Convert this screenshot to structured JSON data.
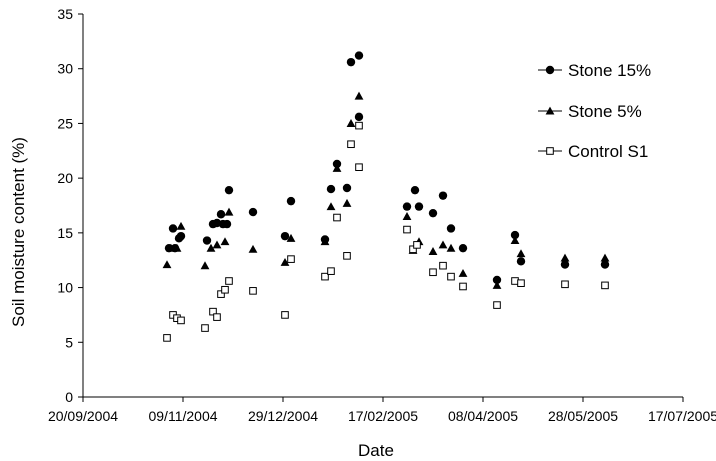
{
  "chart_data": {
    "type": "scatter",
    "title": "",
    "xlabel": "Date",
    "ylabel": "Soil moisture content (%)",
    "xlim": [
      "2004-09-20",
      "2005-07-17"
    ],
    "ylim": [
      0,
      35
    ],
    "y_ticks": [
      0,
      5,
      10,
      15,
      20,
      25,
      30,
      35
    ],
    "x_ticks": [
      "2004-09-20",
      "2004-11-09",
      "2004-12-29",
      "2005-02-17",
      "2005-04-08",
      "2005-05-28",
      "2005-07-17"
    ],
    "x_tick_labels": [
      "20/09/2004",
      "09/11/2004",
      "29/12/2004",
      "17/02/2005",
      "08/04/2005",
      "28/05/2005",
      "17/07/2005"
    ],
    "grid": false,
    "legend_position": "right",
    "series": [
      {
        "name": "Stone 15%",
        "marker": "filled-circle",
        "points": [
          [
            "2004-11-02",
            13.6
          ],
          [
            "2004-11-04",
            15.4
          ],
          [
            "2004-11-05",
            13.6
          ],
          [
            "2004-11-07",
            14.5
          ],
          [
            "2004-11-08",
            14.7
          ],
          [
            "2004-11-21",
            14.3
          ],
          [
            "2004-11-24",
            15.8
          ],
          [
            "2004-11-26",
            15.9
          ],
          [
            "2004-11-28",
            16.7
          ],
          [
            "2004-11-29",
            15.8
          ],
          [
            "2004-12-01",
            15.8
          ],
          [
            "2004-12-02",
            18.9
          ],
          [
            "2004-12-14",
            16.9
          ],
          [
            "2004-12-30",
            14.7
          ],
          [
            "2005-01-02",
            17.9
          ],
          [
            "2005-01-19",
            14.4
          ],
          [
            "2005-01-22",
            19.0
          ],
          [
            "2005-01-25",
            21.3
          ],
          [
            "2005-01-30",
            19.1
          ],
          [
            "2005-02-01",
            30.6
          ],
          [
            "2005-02-05",
            25.6
          ],
          [
            "2005-02-05",
            31.2
          ],
          [
            "2005-03-01",
            17.4
          ],
          [
            "2005-03-05",
            18.9
          ],
          [
            "2005-03-07",
            17.4
          ],
          [
            "2005-03-14",
            16.8
          ],
          [
            "2005-03-19",
            18.4
          ],
          [
            "2005-03-23",
            15.4
          ],
          [
            "2005-03-29",
            13.6
          ],
          [
            "2005-04-15",
            10.7
          ],
          [
            "2005-04-24",
            14.8
          ],
          [
            "2005-04-27",
            12.4
          ],
          [
            "2005-05-19",
            12.1
          ],
          [
            "2005-06-08",
            12.1
          ]
        ]
      },
      {
        "name": "Stone 5%",
        "marker": "filled-triangle",
        "points": [
          [
            "2004-11-01",
            12.1
          ],
          [
            "2004-11-03",
            13.6
          ],
          [
            "2004-11-06",
            13.6
          ],
          [
            "2004-11-08",
            15.6
          ],
          [
            "2004-11-20",
            12.0
          ],
          [
            "2004-11-23",
            13.6
          ],
          [
            "2004-11-26",
            13.9
          ],
          [
            "2004-11-30",
            14.2
          ],
          [
            "2004-12-02",
            16.9
          ],
          [
            "2004-12-14",
            13.5
          ],
          [
            "2004-12-30",
            12.3
          ],
          [
            "2005-01-02",
            14.5
          ],
          [
            "2005-01-19",
            14.2
          ],
          [
            "2005-01-22",
            17.4
          ],
          [
            "2005-01-25",
            20.9
          ],
          [
            "2005-01-30",
            17.7
          ],
          [
            "2005-02-01",
            25.0
          ],
          [
            "2005-02-05",
            27.5
          ],
          [
            "2005-03-01",
            16.5
          ],
          [
            "2005-03-04",
            13.4
          ],
          [
            "2005-03-07",
            14.2
          ],
          [
            "2005-03-14",
            13.3
          ],
          [
            "2005-03-19",
            13.9
          ],
          [
            "2005-03-23",
            13.6
          ],
          [
            "2005-03-29",
            11.3
          ],
          [
            "2005-04-15",
            10.2
          ],
          [
            "2005-04-24",
            14.3
          ],
          [
            "2005-04-27",
            13.1
          ],
          [
            "2005-05-19",
            12.7
          ],
          [
            "2005-06-08",
            12.7
          ]
        ]
      },
      {
        "name": "Control S1",
        "marker": "open-square",
        "points": [
          [
            "2004-11-01",
            5.4
          ],
          [
            "2004-11-04",
            7.5
          ],
          [
            "2004-11-06",
            7.2
          ],
          [
            "2004-11-08",
            7.0
          ],
          [
            "2004-11-20",
            6.3
          ],
          [
            "2004-11-24",
            7.8
          ],
          [
            "2004-11-26",
            7.3
          ],
          [
            "2004-11-28",
            9.4
          ],
          [
            "2004-11-30",
            9.8
          ],
          [
            "2004-12-02",
            10.6
          ],
          [
            "2004-12-14",
            9.7
          ],
          [
            "2004-12-30",
            7.5
          ],
          [
            "2005-01-02",
            12.6
          ],
          [
            "2005-01-19",
            11.0
          ],
          [
            "2005-01-22",
            11.5
          ],
          [
            "2005-01-25",
            16.4
          ],
          [
            "2005-01-30",
            12.9
          ],
          [
            "2005-02-01",
            23.1
          ],
          [
            "2005-02-05",
            24.8
          ],
          [
            "2005-02-05",
            21.0
          ],
          [
            "2005-03-01",
            15.3
          ],
          [
            "2005-03-04",
            13.5
          ],
          [
            "2005-03-06",
            13.9
          ],
          [
            "2005-03-14",
            11.4
          ],
          [
            "2005-03-19",
            12.0
          ],
          [
            "2005-03-23",
            11.0
          ],
          [
            "2005-03-29",
            10.1
          ],
          [
            "2005-04-15",
            8.4
          ],
          [
            "2005-04-24",
            10.6
          ],
          [
            "2005-04-27",
            10.4
          ],
          [
            "2005-05-19",
            10.3
          ],
          [
            "2005-06-08",
            10.2
          ]
        ]
      }
    ]
  }
}
